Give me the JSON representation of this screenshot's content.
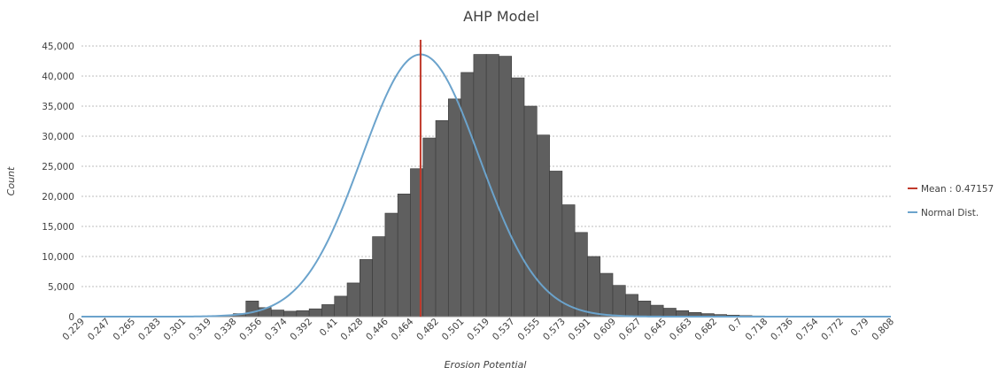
{
  "chart_data": {
    "type": "bar",
    "title": "AHP Model",
    "xlabel": "Erosion Potential",
    "ylabel": "Count",
    "ylim": [
      0,
      45000
    ],
    "yticks": [
      "0",
      "5,000",
      "10,000",
      "15,000",
      "20,000",
      "25,000",
      "30,000",
      "35,000",
      "40,000",
      "45,000"
    ],
    "ytick_values": [
      0,
      5000,
      10000,
      15000,
      20000,
      25000,
      30000,
      35000,
      40000,
      45000
    ],
    "xtick_labels": [
      "0.229",
      "0.247",
      "0.265",
      "0.283",
      "0.301",
      "0.319",
      "0.338",
      "0.356",
      "0.374",
      "0.392",
      "0.41",
      "0.428",
      "0.446",
      "0.464",
      "0.482",
      "0.501",
      "0.519",
      "0.537",
      "0.555",
      "0.573",
      "0.591",
      "0.609",
      "0.627",
      "0.645",
      "0.663",
      "0.682",
      "0.7",
      "0.718",
      "0.736",
      "0.754",
      "0.772",
      "0.79",
      "0.808"
    ],
    "x_range": [
      0.229,
      0.808
    ],
    "bins": {
      "start": 0.229,
      "width": 0.00905,
      "values": [
        0,
        0,
        0,
        0,
        0,
        0,
        0,
        0,
        0,
        100,
        150,
        200,
        500,
        2600,
        1500,
        1100,
        900,
        1000,
        1300,
        2000,
        3400,
        5600,
        9500,
        13300,
        17200,
        20400,
        24600,
        29700,
        32600,
        36200,
        40600,
        43600,
        43600,
        43300,
        39700,
        35000,
        30200,
        24200,
        18600,
        14000,
        10000,
        7200,
        5200,
        3700,
        2600,
        1900,
        1400,
        1000,
        700,
        500,
        350,
        250,
        180,
        120,
        80,
        50,
        30,
        20,
        10,
        0,
        0,
        0,
        0,
        0
      ]
    },
    "series": [
      {
        "name": "Mean : 0.47157",
        "type": "vline",
        "x": 0.47157,
        "color": "#c0392b"
      },
      {
        "name": "Normal Dist.",
        "type": "line",
        "mean": 0.47157,
        "std": 0.0421,
        "peak": 43600,
        "color": "#6ba3cc"
      }
    ],
    "bar_color": "#5f5f5f",
    "bar_edge_color": "#3a3a3a",
    "grid": true,
    "legend_position": "right"
  }
}
